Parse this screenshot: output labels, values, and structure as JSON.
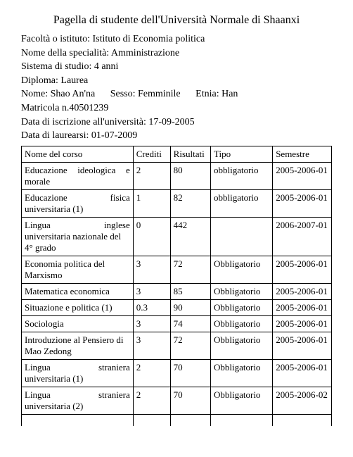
{
  "title": "Pagella di studente dell'Università Normale di Shaanxi",
  "meta": {
    "faculty_label": "Facoltà o istituto",
    "faculty": "Istituto di Economia politica",
    "major_label": "Nome della specialità",
    "major": "Amministrazione",
    "system_label": "Sistema di studio",
    "system": "4 anni",
    "diploma_label": "Diploma",
    "diploma": "Laurea",
    "name_label": "Nome",
    "name": "Shao An'na",
    "sex_label": "Sesso",
    "sex": "Femminile",
    "ethnicity_label": "Etnia",
    "ethnicity": "Han",
    "matric_label": "Matricola n.",
    "matric": "40501239",
    "enroll_label": "Data di iscrizione all'università",
    "enroll": "17-09-2005",
    "grad_label": "Data di laurearsi",
    "grad": "01-07-2009"
  },
  "columns": [
    "Nome del corso",
    "Crediti",
    "Risultati",
    "Tipo",
    "Semestre"
  ],
  "rows": [
    {
      "course": "Educazione ideologica e morale",
      "credits": "2",
      "result": "80",
      "type": "obbligatorio",
      "semester": "2005-2006-01",
      "justify": true
    },
    {
      "course": "Educazione fisica universitaria (1)",
      "credits": "1",
      "result": "82",
      "type": "obbligatorio",
      "semester": "2005-2006-01",
      "justify": false,
      "line1": "Educazione",
      "line1r": "fisica",
      "line2": "universitaria (1)"
    },
    {
      "course": "Lingua inglese universitaria nazionale del 4° grado",
      "credits": "0",
      "result": "442",
      "type": "",
      "semester": "2006-2007-01",
      "justify": false,
      "line1": "Lingua",
      "line1r": "inglese",
      "line2": "universitaria nazionale del 4° grado"
    },
    {
      "course": "Economia politica del Marxismo",
      "credits": "3",
      "result": "72",
      "type": "Obbligatorio",
      "semester": "2005-2006-01",
      "justify": false,
      "line1": "Economia    politica    del",
      "line2": "Marxismo"
    },
    {
      "course": "Matematica economica",
      "credits": "3",
      "result": "85",
      "type": "Obbligatorio",
      "semester": "2005-2006-01",
      "justify": false
    },
    {
      "course": "Situazione e politica (1)",
      "credits": "0.3",
      "result": "90",
      "type": "Obbligatorio",
      "semester": "2005-2006-01",
      "justify": false
    },
    {
      "course": "Sociologia",
      "credits": "3",
      "result": "74",
      "type": "Obbligatorio",
      "semester": "2005-2006-01",
      "justify": false
    },
    {
      "course": "Introduzione al Pensiero di Mao Zedong",
      "credits": "3",
      "result": "72",
      "type": "Obbligatorio",
      "semester": "2005-2006-01",
      "justify": false
    },
    {
      "course": "Lingua straniera universitaria (1)",
      "credits": "2",
      "result": "70",
      "type": "Obbligatorio",
      "semester": "2005-2006-01",
      "justify": false,
      "line1": "Lingua",
      "line1r": "straniera",
      "line2": "universitaria (1)"
    },
    {
      "course": "Lingua straniera universitaria (2)",
      "credits": "2",
      "result": "70",
      "type": "Obbligatorio",
      "semester": "2005-2006-02",
      "justify": false,
      "line1": "Lingua",
      "line1r": "straniera",
      "line2": "universitaria (2)"
    }
  ]
}
